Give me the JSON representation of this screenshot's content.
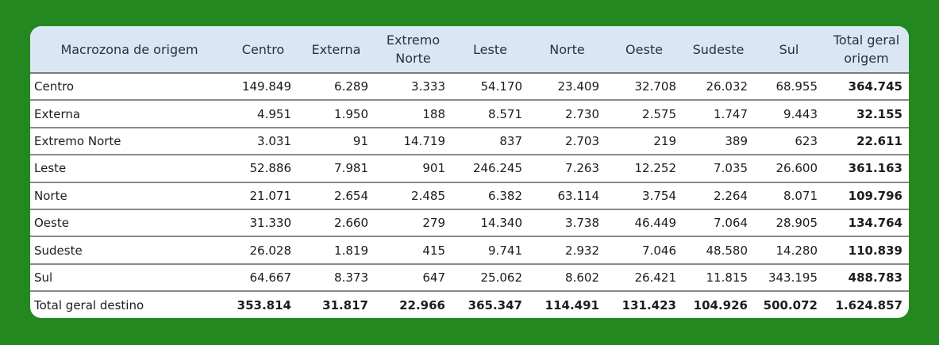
{
  "table": {
    "headers": [
      "Macrozona de origem",
      "Centro",
      "Externa",
      "Extremo Norte",
      "Leste",
      "Norte",
      "Oeste",
      "Sudeste",
      "Sul",
      "Total geral origem"
    ],
    "rows": [
      [
        "Centro",
        "149.849",
        "6.289",
        "3.333",
        "54.170",
        "23.409",
        "32.708",
        "26.032",
        "68.955",
        "364.745"
      ],
      [
        "Externa",
        "4.951",
        "1.950",
        "188",
        "8.571",
        "2.730",
        "2.575",
        "1.747",
        "9.443",
        "32.155"
      ],
      [
        "Extremo Norte",
        "3.031",
        "91",
        "14.719",
        "837",
        "2.703",
        "219",
        "389",
        "623",
        "22.611"
      ],
      [
        "Leste",
        "52.886",
        "7.981",
        "901",
        "246.245",
        "7.263",
        "12.252",
        "7.035",
        "26.600",
        "361.163"
      ],
      [
        "Norte",
        "21.071",
        "2.654",
        "2.485",
        "6.382",
        "63.114",
        "3.754",
        "2.264",
        "8.071",
        "109.796"
      ],
      [
        "Oeste",
        "31.330",
        "2.660",
        "279",
        "14.340",
        "3.738",
        "46.449",
        "7.064",
        "28.905",
        "134.764"
      ],
      [
        "Sudeste",
        "26.028",
        "1.819",
        "415",
        "9.741",
        "2.932",
        "7.046",
        "48.580",
        "14.280",
        "110.839"
      ],
      [
        "Sul",
        "64.667",
        "8.373",
        "647",
        "25.062",
        "8.602",
        "26.421",
        "11.815",
        "343.195",
        "488.783"
      ],
      [
        "Total geral destino",
        "353.814",
        "31.817",
        "22.966",
        "365.347",
        "114.491",
        "131.423",
        "104.926",
        "500.072",
        "1.624.857"
      ]
    ]
  }
}
